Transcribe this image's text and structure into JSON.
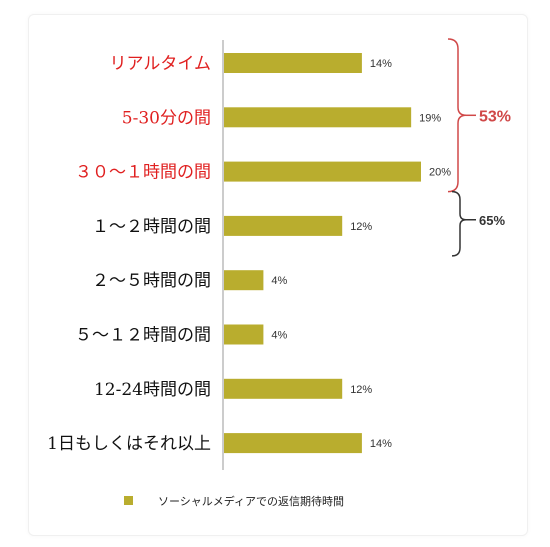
{
  "chart_data": {
    "type": "bar",
    "orientation": "horizontal",
    "categories": [
      "リアルタイム",
      "5-30分の間",
      "３０～１時間の間",
      "１～２時間の間",
      "２～５時間の間",
      "５～１２時間の間",
      "12-24時間の間",
      "1日もしくはそれ以上"
    ],
    "category_colors": [
      "#e02020",
      "#e02020",
      "#e02020",
      "#111111",
      "#111111",
      "#111111",
      "#111111",
      "#111111"
    ],
    "values": [
      14,
      19,
      20,
      12,
      4,
      4,
      12,
      14
    ],
    "value_labels": [
      "14%",
      "19%",
      "20%",
      "12%",
      "4%",
      "4%",
      "12%",
      "14%"
    ],
    "bar_color": "#b9ad2e",
    "series": [
      {
        "name": "ソーシャルメディアでの返信期待時間",
        "values": [
          14,
          19,
          20,
          12,
          4,
          4,
          12,
          14
        ]
      }
    ],
    "legend_position": "bottom",
    "xlim": [
      0,
      22
    ],
    "grid": false,
    "annotations": [
      {
        "text": "53%",
        "color": "#d04848",
        "covers": [
          0,
          2
        ]
      },
      {
        "text": "65%",
        "color": "#333333",
        "covers": [
          2,
          3
        ]
      }
    ]
  }
}
